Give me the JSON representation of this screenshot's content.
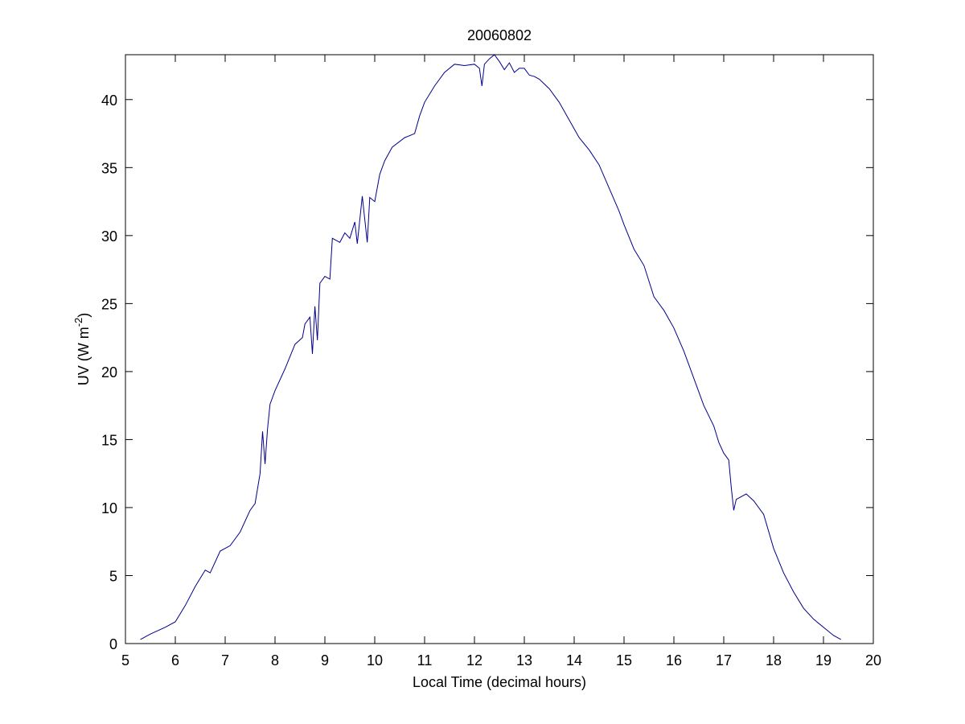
{
  "chart_data": {
    "type": "line",
    "title": "20060802",
    "x_label": "Local Time (decimal hours)",
    "y_label": [
      "UV (W m",
      "-2",
      ")"
    ],
    "xlim": [
      5,
      20
    ],
    "xticks": [
      5,
      6,
      7,
      8,
      9,
      10,
      11,
      12,
      13,
      14,
      15,
      16,
      17,
      18,
      19,
      20
    ],
    "ylim": [
      0,
      43.3
    ],
    "yticks": [
      0,
      5,
      10,
      15,
      20,
      25,
      30,
      35,
      40
    ],
    "grid": false,
    "series": [
      {
        "color": "#00008b",
        "x": [
          5.3,
          5.5,
          5.8,
          6.0,
          6.2,
          6.4,
          6.6,
          6.7,
          6.9,
          7.1,
          7.3,
          7.5,
          7.6,
          7.7,
          7.75,
          7.8,
          7.85,
          7.9,
          8.0,
          8.2,
          8.4,
          8.55,
          8.6,
          8.7,
          8.75,
          8.8,
          8.85,
          8.9,
          9.0,
          9.1,
          9.15,
          9.3,
          9.4,
          9.5,
          9.6,
          9.65,
          9.75,
          9.85,
          9.9,
          10.0,
          10.1,
          10.2,
          10.35,
          10.6,
          10.8,
          10.9,
          11.0,
          11.2,
          11.4,
          11.6,
          11.8,
          12.0,
          12.1,
          12.15,
          12.2,
          12.3,
          12.4,
          12.5,
          12.6,
          12.7,
          12.8,
          12.9,
          13.0,
          13.1,
          13.2,
          13.3,
          13.5,
          13.7,
          13.9,
          14.1,
          14.3,
          14.5,
          14.7,
          14.9,
          15.0,
          15.2,
          15.4,
          15.6,
          15.8,
          16.0,
          16.2,
          16.4,
          16.6,
          16.8,
          16.9,
          17.0,
          17.1,
          17.15,
          17.2,
          17.25,
          17.45,
          17.6,
          17.8,
          18.0,
          18.2,
          18.4,
          18.6,
          18.8,
          19.0,
          19.2,
          19.35
        ],
        "values": [
          0.3,
          0.7,
          1.2,
          1.6,
          2.8,
          4.2,
          5.4,
          5.2,
          6.8,
          7.2,
          8.2,
          9.8,
          10.3,
          12.5,
          15.6,
          13.2,
          15.8,
          17.6,
          18.6,
          20.2,
          22.0,
          22.5,
          23.5,
          24.0,
          21.3,
          24.8,
          22.3,
          26.5,
          27.0,
          26.8,
          29.8,
          29.5,
          30.2,
          29.8,
          31.0,
          29.4,
          32.9,
          29.5,
          32.8,
          32.5,
          34.5,
          35.5,
          36.5,
          37.2,
          37.5,
          38.8,
          39.8,
          41.0,
          42.0,
          42.6,
          42.5,
          42.6,
          42.3,
          41.0,
          42.6,
          43.0,
          43.3,
          42.8,
          42.2,
          42.7,
          42.0,
          42.3,
          42.3,
          41.8,
          41.7,
          41.5,
          40.8,
          39.8,
          38.5,
          37.2,
          36.3,
          35.2,
          33.5,
          31.8,
          30.8,
          29.0,
          27.8,
          25.5,
          24.5,
          23.2,
          21.5,
          19.5,
          17.5,
          16.0,
          14.8,
          14.0,
          13.5,
          11.5,
          9.8,
          10.6,
          11.0,
          10.5,
          9.5,
          7.0,
          5.2,
          3.8,
          2.6,
          1.8,
          1.2,
          0.6,
          0.3
        ]
      }
    ]
  }
}
